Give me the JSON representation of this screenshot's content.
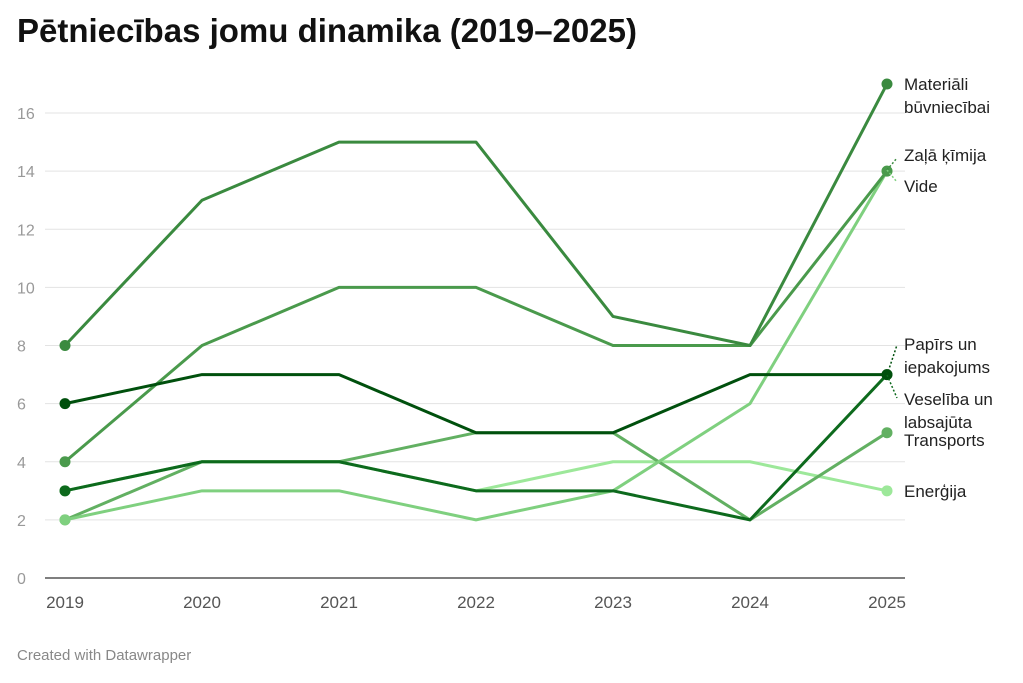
{
  "chart_data": {
    "type": "line",
    "title": "Pētniecības jomu dinamika (2019–2025)",
    "footer": "Created with Datawrapper",
    "x": [
      "2019",
      "2020",
      "2021",
      "2022",
      "2023",
      "2024",
      "2025"
    ],
    "ylim": [
      0,
      16.5
    ],
    "yticks": [
      "0",
      "2",
      "4",
      "6",
      "8",
      "10",
      "12",
      "14",
      "16"
    ],
    "grid": true,
    "legend": "direct-labels-right",
    "series": [
      {
        "name": "Materiāli būvniecībai",
        "label_lines": [
          "Materiāli",
          "būvniecībai"
        ],
        "color": "#3a8a3f",
        "values": [
          8,
          13,
          15,
          15,
          9,
          8,
          17
        ]
      },
      {
        "name": "Zaļā ķīmija",
        "label_lines": [
          "Zaļā ķīmija"
        ],
        "color": "#4a9a4c",
        "values": [
          4,
          8,
          10,
          10,
          8,
          8,
          14
        ]
      },
      {
        "name": "Vide",
        "label_lines": [
          "Vide"
        ],
        "color": "#7fd07f",
        "values": [
          2,
          3,
          3,
          2,
          3,
          6,
          14
        ]
      },
      {
        "name": "Papīrs un iepakojums",
        "label_lines": [
          "Papīrs un",
          "iepakojums"
        ],
        "color": "#00500d",
        "values": [
          6,
          7,
          7,
          5,
          5,
          7,
          7
        ]
      },
      {
        "name": "Veselība un labsajūta",
        "label_lines": [
          "Veselība un",
          "labsajūta"
        ],
        "color": "#0d6a1d",
        "values": [
          3,
          4,
          4,
          3,
          3,
          2,
          7
        ]
      },
      {
        "name": "Transports",
        "label_lines": [
          "Transports"
        ],
        "color": "#62b062",
        "values": [
          2,
          4,
          4,
          5,
          5,
          2,
          5
        ]
      },
      {
        "name": "Enerģija",
        "label_lines": [
          "Enerģija"
        ],
        "color": "#9de89a",
        "values": [
          3,
          4,
          4,
          3,
          4,
          4,
          3
        ]
      }
    ]
  }
}
